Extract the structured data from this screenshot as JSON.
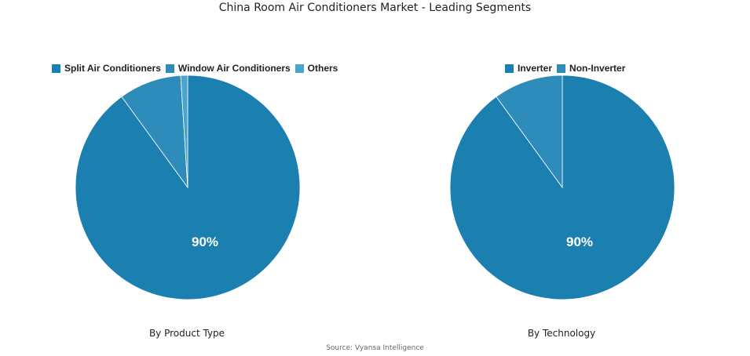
{
  "title": "China Room Air Conditioners Market - Leading Segments",
  "source": "Source: Vyansa Intelligence",
  "chart_data": [
    {
      "type": "pie",
      "title": "By Product Type",
      "legend_position": "top-left",
      "labels": [
        "Split Air Conditioners",
        "Window Air Conditioners",
        "Others"
      ],
      "values": [
        90,
        9,
        1
      ],
      "colors": [
        "#1b7fb0",
        "#2e8cba",
        "#48a5cc"
      ],
      "data_labels": [
        "90%"
      ]
    },
    {
      "type": "pie",
      "title": "By Technology",
      "legend_position": "top",
      "labels": [
        "Inverter",
        "Non-Inverter"
      ],
      "values": [
        90,
        10
      ],
      "colors": [
        "#1b7fb0",
        "#2e8cba"
      ],
      "data_labels": [
        "90%"
      ]
    }
  ]
}
